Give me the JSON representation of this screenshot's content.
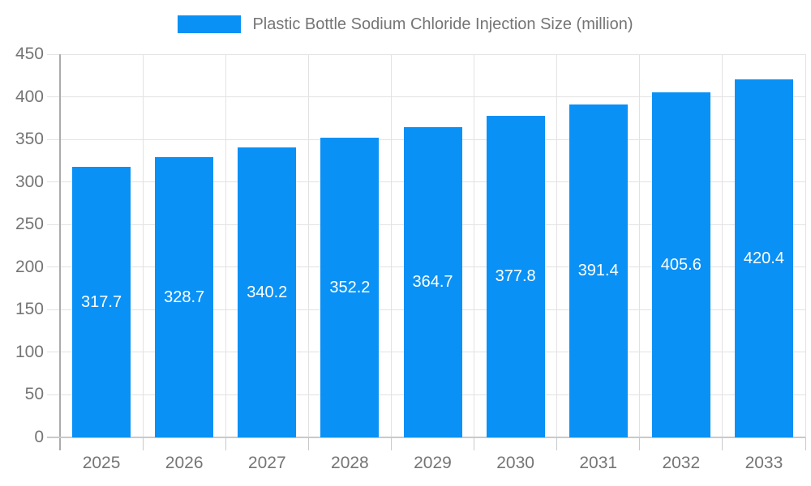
{
  "chart_data": {
    "type": "bar",
    "title": "Plastic Bottle Sodium Chloride Injection Size (million)",
    "categories": [
      "2025",
      "2026",
      "2027",
      "2028",
      "2029",
      "2030",
      "2031",
      "2032",
      "2033"
    ],
    "values": [
      317.7,
      328.7,
      340.2,
      352.2,
      364.7,
      377.8,
      391.4,
      405.6,
      420.4
    ],
    "value_labels": [
      "317.7",
      "328.7",
      "340.2",
      "352.2",
      "364.7",
      "377.8",
      "391.4",
      "405.6",
      "420.4"
    ],
    "ylim": [
      0,
      450
    ],
    "ytick_step": 50,
    "ytick_labels": [
      "0",
      "50",
      "100",
      "150",
      "200",
      "250",
      "300",
      "350",
      "400",
      "450"
    ],
    "grid": true,
    "legend_position": "top",
    "colors": {
      "bar": "#0991f5",
      "bar_value_text": "#ffffff",
      "axis_text": "#757575",
      "gridline": "#e2e2e2",
      "y_axis_line": "#ababab",
      "x_axis_line": "#c9c9c9"
    }
  }
}
